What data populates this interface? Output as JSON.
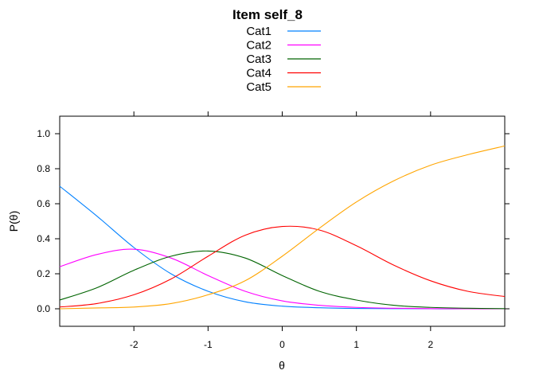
{
  "chart_data": {
    "type": "line",
    "title": "Item self_8",
    "xlabel": "θ",
    "ylabel": "P(θ)",
    "xlim": [
      -3,
      3
    ],
    "ylim": [
      -0.1,
      1.1
    ],
    "x_ticks": [
      -2,
      -1,
      0,
      1,
      2
    ],
    "y_ticks": [
      0.0,
      0.2,
      0.4,
      0.6,
      0.8,
      1.0
    ],
    "x_tick_labels": [
      "-2",
      "-1",
      "0",
      "1",
      "2"
    ],
    "y_tick_labels": [
      "0.0",
      "0.2",
      "0.4",
      "0.6",
      "0.8",
      "1.0"
    ],
    "grid": false,
    "legend_position": "top",
    "x": [
      -3.0,
      -2.5,
      -2.0,
      -1.5,
      -1.0,
      -0.5,
      0.0,
      0.5,
      1.0,
      1.5,
      2.0,
      2.5,
      3.0
    ],
    "series": [
      {
        "name": "Cat1",
        "color": "#0080ff",
        "values": [
          0.7,
          0.53,
          0.35,
          0.2,
          0.1,
          0.04,
          0.015,
          0.006,
          0.002,
          0.001,
          0.0,
          0.0,
          0.0
        ]
      },
      {
        "name": "Cat2",
        "color": "#ff00ff",
        "values": [
          0.24,
          0.31,
          0.34,
          0.29,
          0.19,
          0.1,
          0.045,
          0.02,
          0.008,
          0.003,
          0.001,
          0.0,
          0.0
        ]
      },
      {
        "name": "Cat3",
        "color": "#006400",
        "values": [
          0.05,
          0.12,
          0.22,
          0.3,
          0.33,
          0.29,
          0.19,
          0.1,
          0.05,
          0.02,
          0.008,
          0.003,
          0.001
        ]
      },
      {
        "name": "Cat4",
        "color": "#ff0000",
        "values": [
          0.01,
          0.03,
          0.08,
          0.17,
          0.3,
          0.42,
          0.47,
          0.45,
          0.36,
          0.25,
          0.16,
          0.1,
          0.07
        ]
      },
      {
        "name": "Cat5",
        "color": "#ffa500",
        "values": [
          0.0,
          0.005,
          0.01,
          0.03,
          0.08,
          0.16,
          0.3,
          0.46,
          0.61,
          0.73,
          0.82,
          0.88,
          0.93
        ]
      }
    ]
  }
}
